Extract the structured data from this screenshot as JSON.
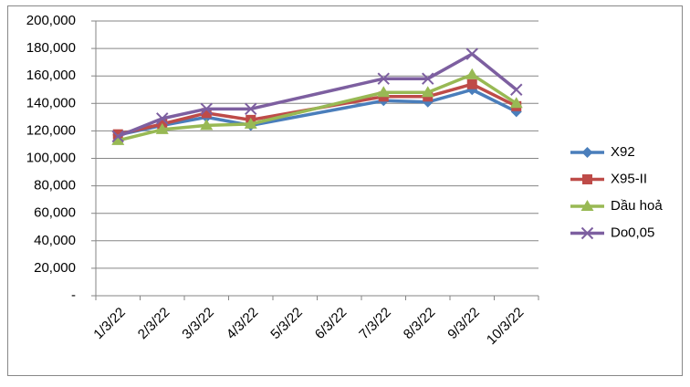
{
  "chart_data": {
    "type": "line",
    "categories": [
      "1/3/22",
      "2/3/22",
      "3/3/22",
      "4/3/22",
      "5/3/22",
      "6/3/22",
      "7/3/22",
      "8/3/22",
      "9/3/22",
      "10/3/22"
    ],
    "series": [
      {
        "name": "X92",
        "color": "#4a7ebb",
        "marker": "diamond",
        "values": [
          117000,
          124000,
          130000,
          124000,
          null,
          null,
          142000,
          141000,
          150000,
          134000
        ]
      },
      {
        "name": "X95-II",
        "color": "#be4b48",
        "marker": "square",
        "values": [
          117500,
          125000,
          133000,
          128000,
          null,
          null,
          145000,
          145000,
          154000,
          138000
        ]
      },
      {
        "name": "Dầu hoả",
        "color": "#98b954",
        "marker": "triangle",
        "values": [
          113000,
          121000,
          124000,
          125000,
          null,
          null,
          148000,
          148000,
          161000,
          140000
        ]
      },
      {
        "name": "Do0,05",
        "color": "#7d5fa0",
        "marker": "x",
        "values": [
          116000,
          129000,
          136000,
          136000,
          null,
          null,
          158000,
          158000,
          176000,
          150000
        ]
      }
    ],
    "ylim": [
      0,
      200000
    ],
    "yticks": [
      {
        "value": 0,
        "label": "-"
      },
      {
        "value": 20000,
        "label": "20,000"
      },
      {
        "value": 40000,
        "label": "40,000"
      },
      {
        "value": 60000,
        "label": "60,000"
      },
      {
        "value": 80000,
        "label": "80,000"
      },
      {
        "value": 100000,
        "label": "100,000"
      },
      {
        "value": 120000,
        "label": "120,000"
      },
      {
        "value": 140000,
        "label": "140,000"
      },
      {
        "value": 160000,
        "label": "160,000"
      },
      {
        "value": 180000,
        "label": "180,000"
      },
      {
        "value": 200000,
        "label": "200,000"
      }
    ],
    "grid": true,
    "connect_gaps": true,
    "legend": "right"
  }
}
